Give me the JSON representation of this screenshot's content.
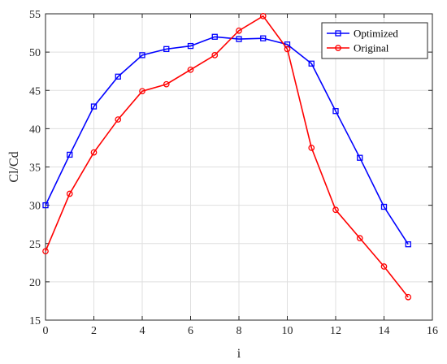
{
  "chart_data": {
    "type": "line",
    "title": "",
    "xlabel": "i",
    "ylabel": "Cl/Cd",
    "xlim": [
      0,
      16
    ],
    "ylim": [
      15,
      55
    ],
    "xticks": [
      0,
      2,
      4,
      6,
      8,
      10,
      12,
      14,
      16
    ],
    "yticks": [
      15,
      20,
      25,
      30,
      35,
      40,
      45,
      50,
      55
    ],
    "grid": true,
    "legend_position": "top-right",
    "x": [
      0,
      1,
      2,
      3,
      4,
      5,
      6,
      7,
      8,
      9,
      10,
      11,
      12,
      13,
      14,
      15
    ],
    "series": [
      {
        "name": "Optimized",
        "color": "#0000ff",
        "marker": "square",
        "values": [
          30.0,
          36.6,
          42.9,
          46.8,
          49.6,
          50.4,
          50.8,
          52.0,
          51.7,
          51.8,
          51.0,
          48.5,
          42.3,
          36.2,
          29.8,
          24.9
        ]
      },
      {
        "name": "Original",
        "color": "#ff0000",
        "marker": "circle",
        "values": [
          24.0,
          31.5,
          36.9,
          41.2,
          44.9,
          45.8,
          47.7,
          49.6,
          52.8,
          54.7,
          50.4,
          37.5,
          29.4,
          25.7,
          22.0,
          18.0
        ]
      }
    ]
  }
}
